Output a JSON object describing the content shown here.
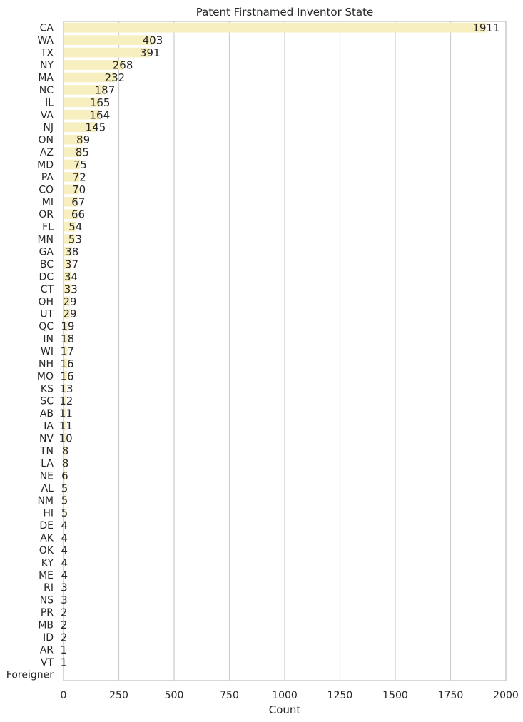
{
  "chart_data": {
    "type": "bar",
    "orientation": "horizontal",
    "title": "Patent Firstnamed Inventor State",
    "xlabel": "Count",
    "ylabel": "",
    "xlim": [
      0,
      2000
    ],
    "xticks": [
      0,
      250,
      500,
      750,
      1000,
      1250,
      1500,
      1750,
      2000
    ],
    "xtick_labels": [
      "0",
      "250",
      "500",
      "750",
      "1000",
      "1250",
      "1500",
      "1750",
      "2000"
    ],
    "grid": "vertical",
    "bar_color": "#f7efbf",
    "categories": [
      "CA",
      "WA",
      "TX",
      "NY",
      "MA",
      "NC",
      "IL",
      "VA",
      "NJ",
      "ON",
      "AZ",
      "MD",
      "PA",
      "CO",
      "MI",
      "OR",
      "FL",
      "MN",
      "GA",
      "BC",
      "DC",
      "CT",
      "OH",
      "UT",
      "QC",
      "IN",
      "WI",
      "NH",
      "MO",
      "KS",
      "SC",
      "AB",
      "IA",
      "NV",
      "TN",
      "LA",
      "NE",
      "AL",
      "NM",
      "HI",
      "DE",
      "AK",
      "OK",
      "KY",
      "ME",
      "RI",
      "NS",
      "PR",
      "MB",
      "ID",
      "AR",
      "VT",
      "Foreigner"
    ],
    "values": [
      1911,
      403,
      391,
      268,
      232,
      187,
      165,
      164,
      145,
      89,
      85,
      75,
      72,
      70,
      67,
      66,
      54,
      53,
      38,
      37,
      34,
      33,
      29,
      29,
      19,
      18,
      17,
      16,
      16,
      13,
      12,
      11,
      11,
      10,
      8,
      8,
      6,
      5,
      5,
      5,
      4,
      4,
      4,
      4,
      4,
      3,
      3,
      2,
      2,
      2,
      1,
      1,
      null
    ],
    "value_labels": [
      "1911",
      "403",
      "391",
      "268",
      "232",
      "187",
      "165",
      "164",
      "145",
      "89",
      "85",
      "75",
      "72",
      "70",
      "67",
      "66",
      "54",
      "53",
      "38",
      "37",
      "34",
      "33",
      "29",
      "29",
      "19",
      "18",
      "17",
      "16",
      "16",
      "13",
      "12",
      "11",
      "11",
      "10",
      "8",
      "8",
      "6",
      "5",
      "5",
      "5",
      "4",
      "4",
      "4",
      "4",
      "4",
      "3",
      "3",
      "2",
      "2",
      "2",
      "1",
      "1",
      ""
    ]
  }
}
